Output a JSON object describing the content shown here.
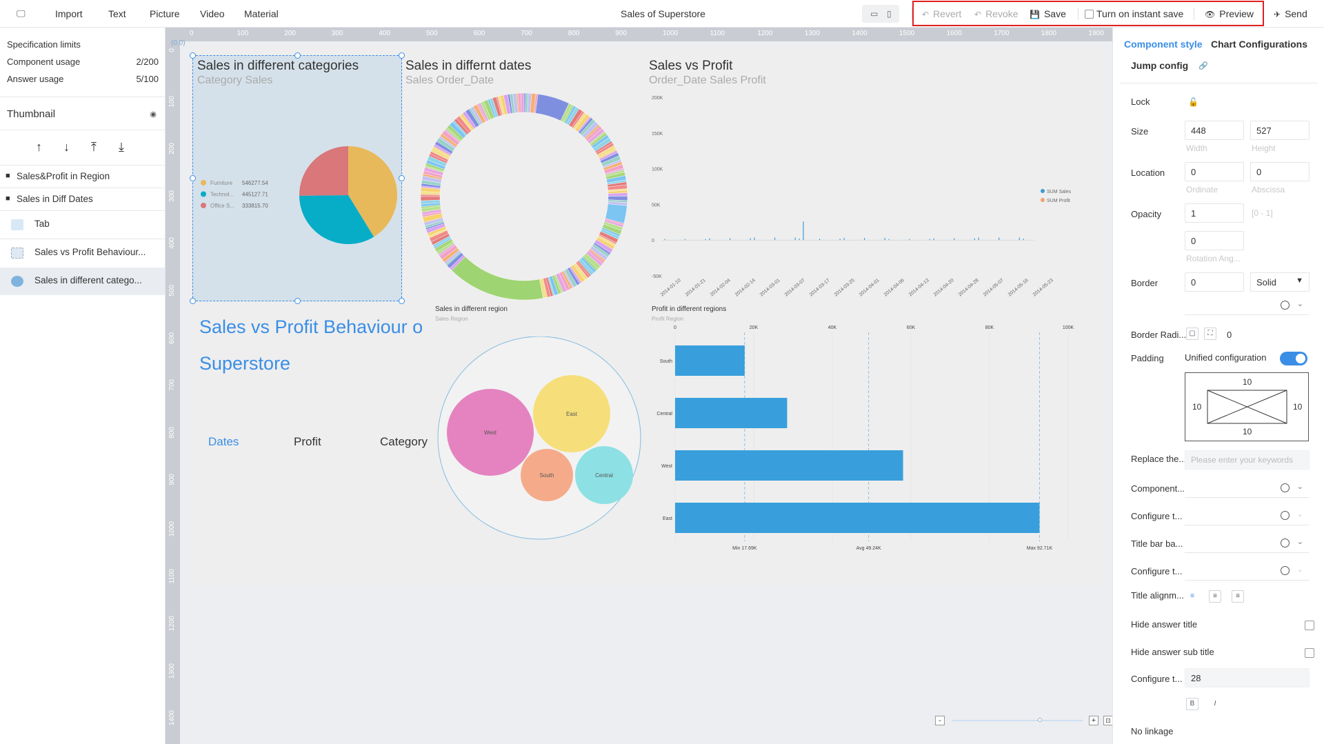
{
  "topbar": {
    "menu": [
      "Import",
      "Text",
      "Picture",
      "Video",
      "Material"
    ],
    "title": "Sales of Superstore",
    "revert": "Revert",
    "revoke": "Revoke",
    "save": "Save",
    "instant_save": "Turn on instant save",
    "preview": "Preview",
    "send": "Send"
  },
  "left": {
    "spec_limits": "Specification limits",
    "component_usage_label": "Component usage",
    "component_usage_value": "2/200",
    "answer_usage_label": "Answer usage",
    "answer_usage_value": "5/100",
    "thumbnail": "Thumbnail",
    "layers": [
      {
        "label": "Sales&Profit in Region"
      },
      {
        "label": "Sales in Diff Dates"
      },
      {
        "label": "Tab"
      },
      {
        "label": "Sales vs Profit Behaviour..."
      },
      {
        "label": "Sales in different catego..."
      }
    ]
  },
  "canvas": {
    "coord": "(0,0)",
    "ruler_h": [
      "0",
      "100",
      "200",
      "300",
      "400",
      "500",
      "600",
      "700",
      "800",
      "900",
      "1000",
      "1100",
      "1200",
      "1300",
      "1400",
      "1500",
      "1600",
      "1700",
      "1800",
      "1900"
    ],
    "ruler_v": [
      "0",
      "100",
      "200",
      "300",
      "400",
      "500",
      "600",
      "700",
      "800",
      "900",
      "1000",
      "1100",
      "1200",
      "1300",
      "1400"
    ],
    "pie": {
      "title": "Sales in different categories",
      "subtitle": "Category Sales"
    },
    "donut": {
      "title": "Sales in differnt dates",
      "subtitle": "Sales Order_Date"
    },
    "sales_profit": {
      "title": "Sales vs Profit",
      "subtitle": "Order_Date Sales Profit"
    },
    "bubble": {
      "title": "Sales in different region",
      "subtitle": "Sales Region"
    },
    "hbar": {
      "title": "Profit in different regions",
      "subtitle": "Profit Region",
      "min_label": "Min 17.69K",
      "avg_label": "Avg 49.24K",
      "max_label": "Max 92.71K"
    },
    "tab_text": {
      "heading_1": "Sales vs Profit Behaviour o",
      "heading_2": "Superstore",
      "tabs": [
        "Dates",
        "Profit",
        "Category"
      ]
    }
  },
  "chart_data": [
    {
      "type": "pie",
      "title": "Sales in different categories",
      "subtitle": "Category Sales",
      "legend_position": "left",
      "slices": [
        {
          "name": "Furniture",
          "value": 546277.54,
          "color": "#e8b95a"
        },
        {
          "name": "Technol...",
          "value": 445127.71,
          "color": "#07adc7"
        },
        {
          "name": "Office S...",
          "value": 333815.7,
          "color": "#d9777a"
        }
      ]
    },
    {
      "type": "line",
      "title": "Sales vs Profit",
      "subtitle": "Order_Date Sales Profit",
      "y_ticks": [
        "200K",
        "150K",
        "100K",
        "50K",
        "0",
        "-50K"
      ],
      "ylim": [
        -50000,
        200000
      ],
      "x_ticks": [
        "2014-01-10",
        "2014-01-21",
        "2014-02-04",
        "2014-02-14",
        "2014-03-01",
        "2014-03-07",
        "2014-03-17",
        "2014-03-25",
        "2014-04-01",
        "2014-04-06",
        "2014-04-13",
        "2014-04-20",
        "2014-04-28",
        "2014-05-07",
        "2014-05-16",
        "2014-05-23"
      ],
      "legend_position": "right",
      "series": [
        {
          "name": "SUM Sales",
          "color": "#3a9ad9"
        },
        {
          "name": "SUM Profit",
          "color": "#f0a070"
        }
      ]
    },
    {
      "type": "bubble",
      "title": "Sales in different region",
      "subtitle": "Sales Region",
      "bubbles": [
        {
          "name": "West",
          "color": "#e483c0"
        },
        {
          "name": "East",
          "color": "#f6df7a"
        },
        {
          "name": "South",
          "color": "#f5ab8a"
        },
        {
          "name": "Central",
          "color": "#8de0e4"
        }
      ]
    },
    {
      "type": "bar",
      "orientation": "horizontal",
      "title": "Profit in different regions",
      "subtitle": "Profit Region",
      "categories": [
        "South",
        "Central",
        "West",
        "East"
      ],
      "values": [
        17690,
        28500,
        58000,
        92710
      ],
      "x_ticks": [
        "0",
        "20K",
        "40K",
        "60K",
        "80K",
        "100K"
      ],
      "xlim": [
        0,
        100000
      ],
      "reference_lines": [
        17690,
        49240,
        92710
      ],
      "color": "#389fdc"
    }
  ],
  "right": {
    "tab_style": "Component style",
    "tab_chart": "Chart Configurations",
    "jump_config": "Jump config",
    "lock": "Lock",
    "size": "Size",
    "width_value": "448",
    "height_value": "527",
    "width_hint": "Width",
    "height_hint": "Height",
    "location": "Location",
    "ordinate_value": "0",
    "abscissa_value": "0",
    "ordinate_hint": "Ordinate",
    "abscissa_hint": "Abscissa",
    "opacity": "Opacity",
    "opacity_value": "1",
    "opacity_hint": "[0 - 1]",
    "rotation_value": "0",
    "rotation_hint": "Rotation Ang...",
    "border": "Border",
    "border_value": "0",
    "border_style": "Solid",
    "border_radius": "Border Radi...",
    "border_radius_value": "0",
    "padding": "Padding",
    "unified_config": "Unified configuration",
    "padding_top": "10",
    "padding_left": "10",
    "padding_right": "10",
    "padding_bottom": "10",
    "replace": "Replace the...",
    "keywords_placeholder": "Please enter your keywords",
    "component_bg": "Component...",
    "configure_1": "Configure t...",
    "title_bar": "Title bar ba...",
    "configure_2": "Configure t...",
    "title_align": "Title alignm...",
    "hide_answer_title": "Hide answer title",
    "hide_answer_sub": "Hide answer sub title",
    "configure_3": "Configure t...",
    "font_size_value": "28",
    "no_linkage": "No linkage"
  }
}
